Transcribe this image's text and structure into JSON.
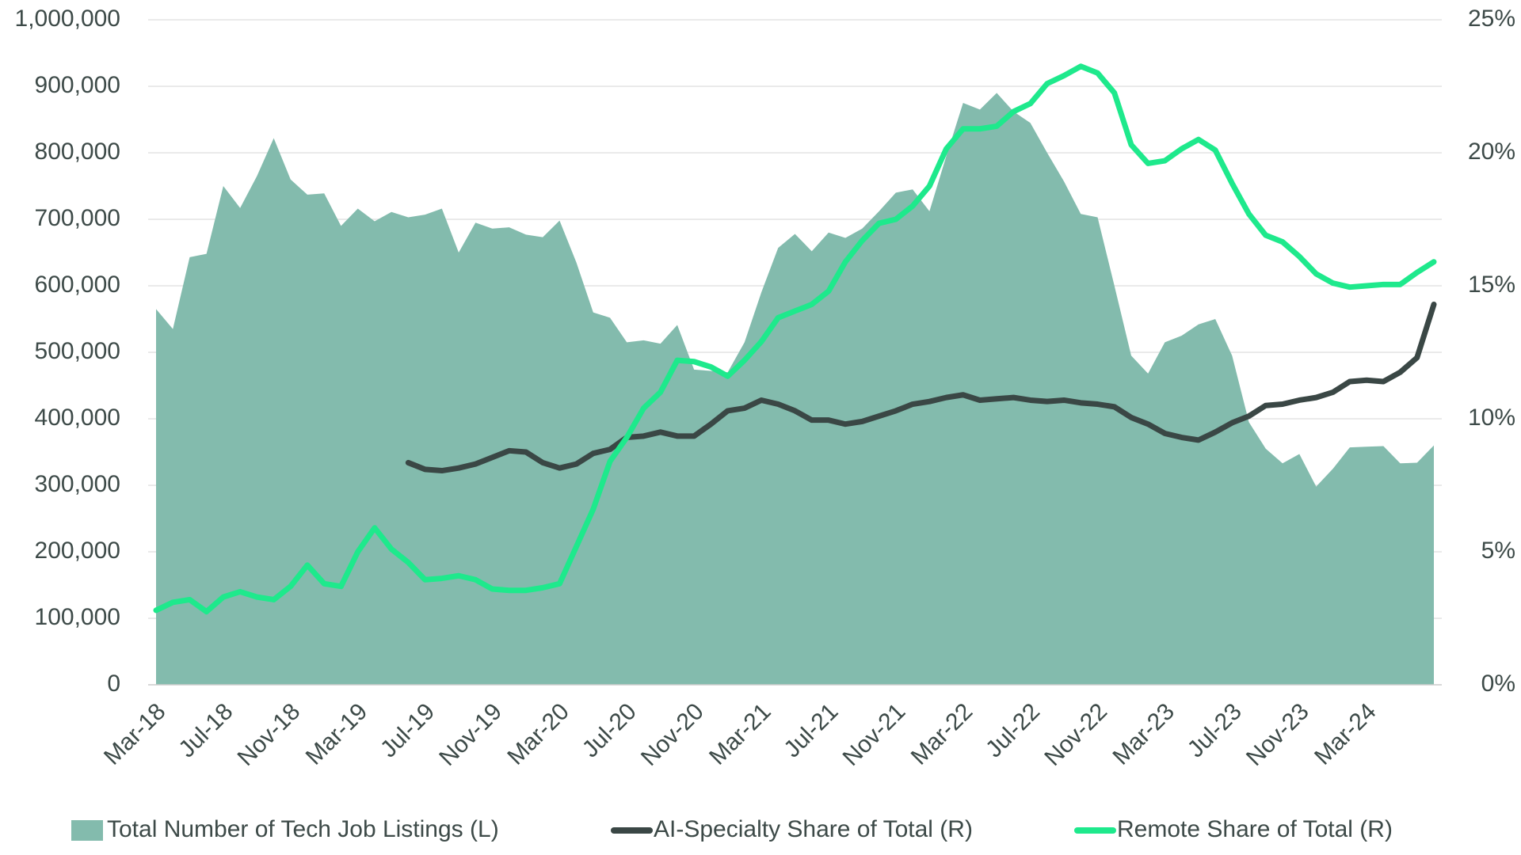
{
  "chart_data": {
    "type": "combo",
    "categories": [
      "Mar-18",
      null,
      null,
      null,
      "Jul-18",
      null,
      null,
      null,
      "Nov-18",
      null,
      null,
      null,
      "Mar-19",
      null,
      null,
      null,
      "Jul-19",
      null,
      null,
      null,
      "Nov-19",
      null,
      null,
      null,
      "Mar-20",
      null,
      null,
      null,
      "Jul-20",
      null,
      null,
      null,
      "Nov-20",
      null,
      null,
      null,
      "Mar-21",
      null,
      null,
      null,
      "Jul-21",
      null,
      null,
      null,
      "Nov-21",
      null,
      null,
      null,
      "Mar-22",
      null,
      null,
      null,
      "Jul-22",
      null,
      null,
      null,
      "Nov-22",
      null,
      null,
      null,
      "Mar-23",
      null,
      null,
      null,
      "Jul-23",
      null,
      null,
      null,
      "Nov-23",
      null,
      null,
      null,
      "Mar-24",
      null,
      null,
      null,
      null
    ],
    "series": [
      {
        "name": "Total Number of Tech Job Listings (L)",
        "type": "area",
        "axis": "y",
        "color": "#83bbad",
        "values": [
          565000,
          535000,
          643000,
          648000,
          750000,
          717000,
          765000,
          822000,
          760000,
          737000,
          739000,
          690000,
          716000,
          697000,
          711000,
          703000,
          707000,
          716000,
          650000,
          695000,
          686000,
          688000,
          677000,
          673000,
          698000,
          635000,
          560000,
          552000,
          515000,
          518000,
          513000,
          541000,
          474000,
          472000,
          470000,
          515000,
          590000,
          657000,
          678000,
          652000,
          680000,
          672000,
          686000,
          712000,
          740000,
          745000,
          712000,
          795000,
          875000,
          865000,
          890000,
          862000,
          845000,
          800000,
          757000,
          708000,
          703000,
          600000,
          495000,
          468000,
          515000,
          525000,
          542000,
          550000,
          495000,
          395000,
          355000,
          333000,
          347000,
          298000,
          325000,
          357000,
          358000,
          359000,
          333000,
          334000,
          360000
        ]
      },
      {
        "name": "AI-Specialty Share of Total (R)",
        "type": "line",
        "axis": "y2",
        "color": "#3a4745",
        "values": [
          null,
          null,
          null,
          null,
          null,
          null,
          null,
          null,
          null,
          null,
          null,
          null,
          null,
          null,
          null,
          8.35,
          8.1,
          8.05,
          8.15,
          8.3,
          8.55,
          8.8,
          8.75,
          8.35,
          8.15,
          8.3,
          8.7,
          8.85,
          9.3,
          9.35,
          9.5,
          9.35,
          9.35,
          9.8,
          10.3,
          10.4,
          10.7,
          10.55,
          10.3,
          9.95,
          9.95,
          9.8,
          9.9,
          10.1,
          10.3,
          10.55,
          10.65,
          10.8,
          10.9,
          10.7,
          10.75,
          10.8,
          10.7,
          10.65,
          10.7,
          10.6,
          10.55,
          10.45,
          10.05,
          9.8,
          9.45,
          9.3,
          9.2,
          9.5,
          9.85,
          10.1,
          10.5,
          10.55,
          10.7,
          10.8,
          11.0,
          11.4,
          11.45,
          11.4,
          11.75,
          12.3,
          14.3
        ]
      },
      {
        "name": "Remote Share of Total (R)",
        "type": "line",
        "axis": "y2",
        "color": "#1ee98c",
        "values": [
          2.8,
          3.1,
          3.2,
          2.75,
          3.3,
          3.5,
          3.3,
          3.2,
          3.7,
          4.5,
          3.8,
          3.7,
          5.0,
          5.9,
          5.1,
          4.6,
          3.95,
          4.0,
          4.1,
          3.95,
          3.6,
          3.55,
          3.55,
          3.65,
          3.8,
          5.2,
          6.6,
          8.4,
          9.3,
          10.4,
          11.0,
          12.2,
          12.15,
          11.95,
          11.6,
          12.2,
          12.9,
          13.8,
          14.05,
          14.3,
          14.8,
          15.9,
          16.7,
          17.35,
          17.5,
          18.0,
          18.75,
          20.15,
          20.9,
          20.9,
          21.0,
          21.55,
          21.85,
          22.6,
          22.9,
          23.25,
          23.0,
          22.25,
          20.3,
          19.6,
          19.7,
          20.15,
          20.5,
          20.1,
          18.85,
          17.7,
          16.9,
          16.65,
          16.1,
          15.45,
          15.1,
          14.95,
          15.0,
          15.05,
          15.05,
          15.5,
          15.9
        ]
      }
    ],
    "ylim": [
      0,
      1000000
    ],
    "yticks": [
      0,
      {
        "value": 100000,
        "label": "100,000"
      },
      {
        "value": 200000,
        "label": "200,000"
      },
      {
        "value": 300000,
        "label": "300,000"
      },
      {
        "value": 400000,
        "label": "400,000"
      },
      {
        "value": 500000,
        "label": "500,000"
      },
      {
        "value": 600000,
        "label": "600,000"
      },
      {
        "value": 700000,
        "label": "700,000"
      },
      {
        "value": 800000,
        "label": "800,000"
      },
      {
        "value": 900000,
        "label": "900,000"
      },
      {
        "value": 1000000,
        "label": "1,000,000"
      }
    ],
    "y2lim": [
      0,
      25
    ],
    "y2ticks": [
      {
        "value": 0,
        "label": "0%"
      },
      {
        "value": 5,
        "label": "5%"
      },
      {
        "value": 10,
        "label": "10%"
      },
      {
        "value": 15,
        "label": "15%"
      },
      {
        "value": 20,
        "label": "20%"
      },
      {
        "value": 25,
        "label": "25%"
      }
    ],
    "grid": true,
    "legend": "bottom"
  }
}
